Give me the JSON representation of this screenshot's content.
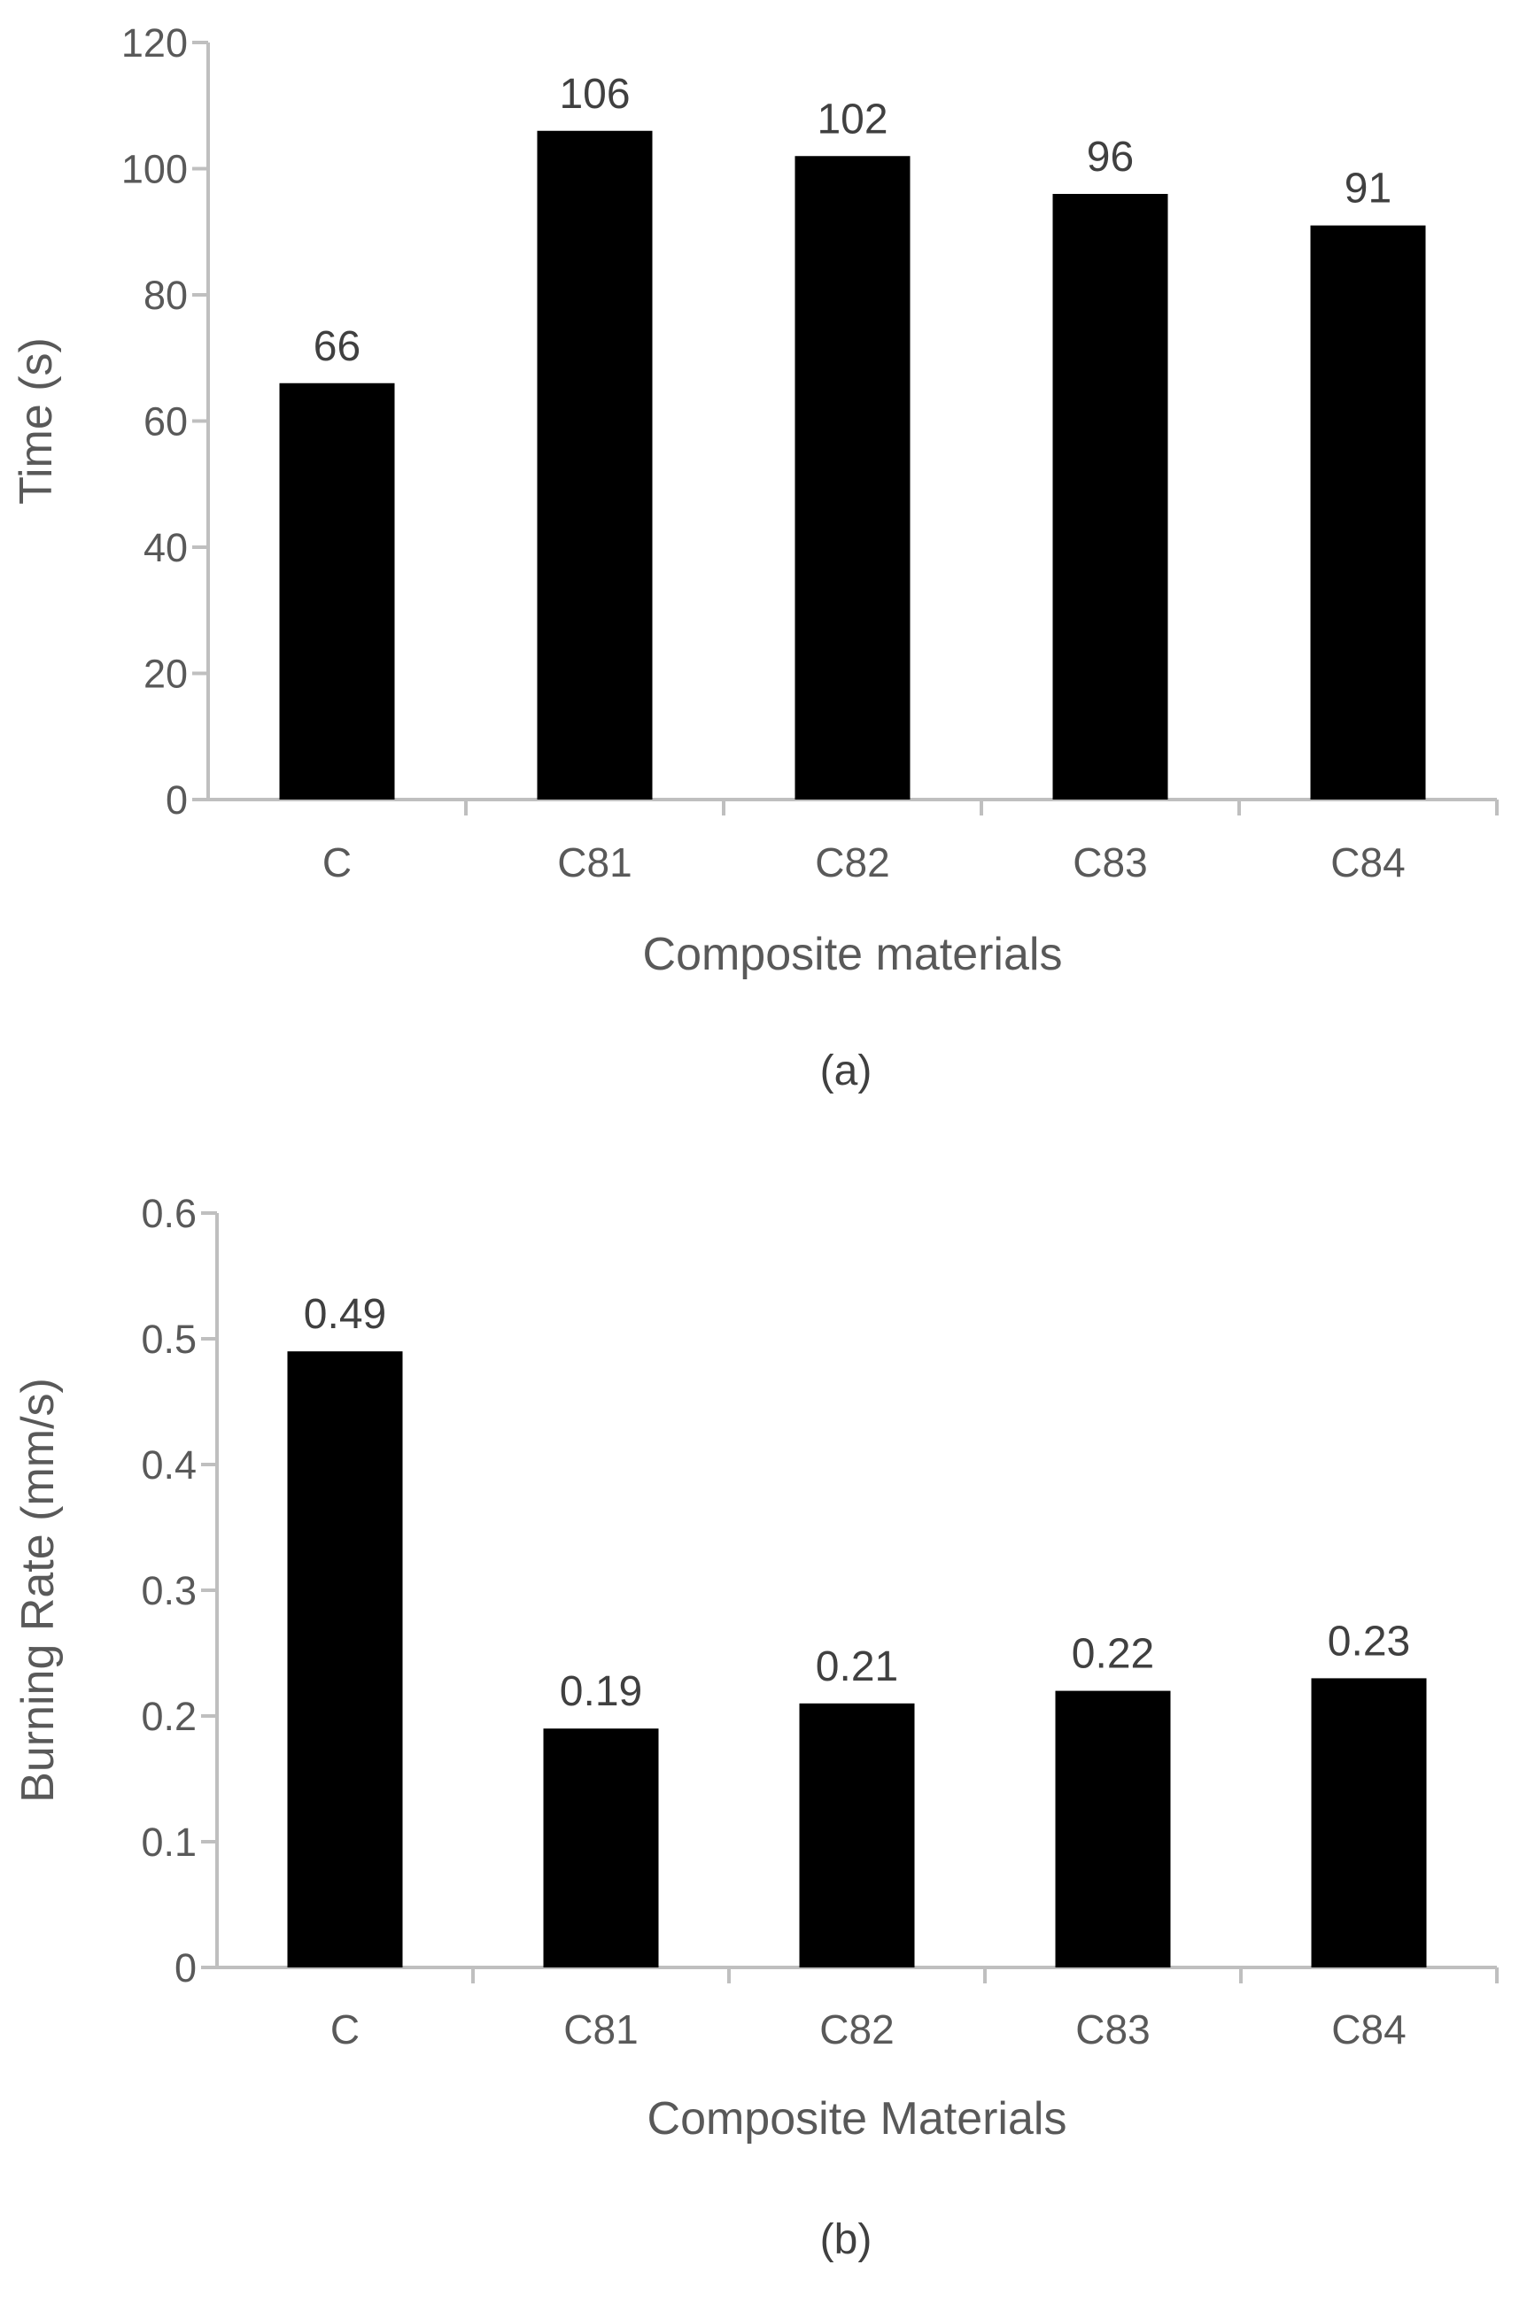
{
  "chart_data": [
    {
      "type": "bar",
      "panel": "(a)",
      "title": "",
      "categories": [
        "C",
        "C81",
        "C82",
        "C83",
        "C84"
      ],
      "values": [
        66,
        106,
        102,
        96,
        91
      ],
      "data_labels": [
        "66",
        "106",
        "102",
        "96",
        "91"
      ],
      "xlabel": "Composite materials",
      "ylabel": "Time (s)",
      "ylim": [
        0,
        120
      ],
      "yticks": [
        0,
        20,
        40,
        60,
        80,
        100,
        120
      ],
      "ytick_labels": [
        "0",
        "20",
        "40",
        "60",
        "80",
        "100",
        "120"
      ],
      "grid": false,
      "legend": "none",
      "bar_color": "#000000"
    },
    {
      "type": "bar",
      "panel": "(b)",
      "title": "",
      "categories": [
        "C",
        "C81",
        "C82",
        "C83",
        "C84"
      ],
      "values": [
        0.49,
        0.19,
        0.21,
        0.22,
        0.23
      ],
      "data_labels": [
        "0.49",
        "0.19",
        "0.21",
        "0.22",
        "0.23"
      ],
      "xlabel": "Composite Materials",
      "ylabel": "Burning Rate (mm/s)",
      "ylim": [
        0,
        0.6
      ],
      "yticks": [
        0,
        0.1,
        0.2,
        0.3,
        0.4,
        0.5,
        0.6
      ],
      "ytick_labels": [
        "0",
        "0.1",
        "0.2",
        "0.3",
        "0.4",
        "0.5",
        "0.6"
      ],
      "grid": false,
      "legend": "none",
      "bar_color": "#000000"
    }
  ]
}
